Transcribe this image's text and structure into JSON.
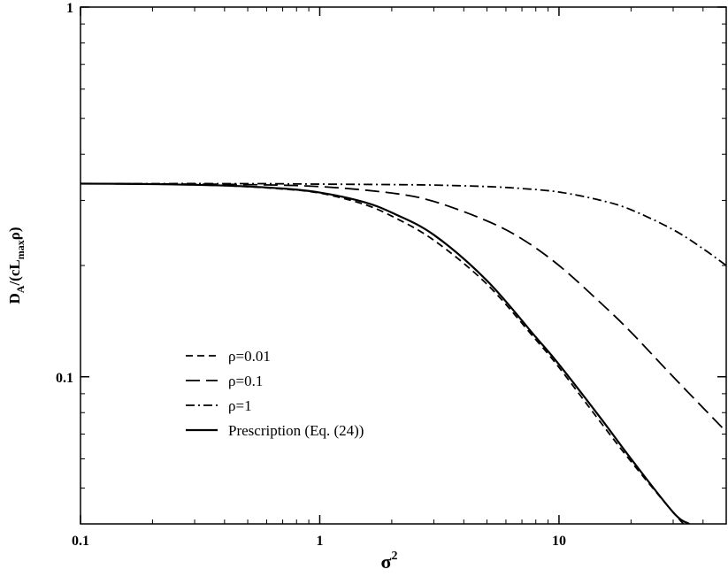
{
  "chart_data": {
    "type": "line",
    "x_scale": "log",
    "y_scale": "log",
    "xlim": [
      0.1,
      50
    ],
    "ylim": [
      0.04,
      1
    ],
    "x_ticks": [
      0.1,
      1,
      10
    ],
    "x_tick_labels": [
      "0.1",
      "1",
      "10"
    ],
    "y_ticks": [
      0.1,
      1
    ],
    "y_tick_labels": [
      "0.1",
      "1"
    ],
    "xlabel": {
      "base": "σ",
      "sup": "2"
    },
    "ylabel": {
      "p1": "D",
      "sub1": "A",
      "p2": "/(cL",
      "sub2": "max",
      "p3": "ρ)"
    },
    "grid": false,
    "legend_position": "lower-left",
    "series": [
      {
        "name": "ρ=0.01",
        "style": "dashed",
        "x": [
          0.1,
          0.2,
          0.4,
          0.7,
          1,
          1.5,
          2,
          3,
          5,
          8,
          10,
          15,
          20,
          30,
          40
        ],
        "y": [
          0.333,
          0.332,
          0.329,
          0.322,
          0.314,
          0.294,
          0.272,
          0.234,
          0.178,
          0.126,
          0.106,
          0.075,
          0.059,
          0.043,
          0.035
        ]
      },
      {
        "name": "ρ=0.1",
        "style": "long-dashed",
        "x": [
          0.1,
          0.3,
          0.5,
          1,
          2,
          3,
          5,
          7,
          10,
          15,
          20,
          30,
          50
        ],
        "y": [
          0.333,
          0.332,
          0.331,
          0.327,
          0.314,
          0.298,
          0.264,
          0.236,
          0.2,
          0.158,
          0.132,
          0.1,
          0.071
        ]
      },
      {
        "name": "ρ=1",
        "style": "dash-dot",
        "x": [
          0.1,
          0.5,
          1,
          2,
          3,
          5,
          7,
          10,
          15,
          20,
          30,
          40,
          50
        ],
        "y": [
          0.333,
          0.333,
          0.332,
          0.331,
          0.33,
          0.327,
          0.323,
          0.316,
          0.3,
          0.283,
          0.25,
          0.222,
          0.2
        ]
      },
      {
        "name": "Prescription (Eq. (24))",
        "style": "solid",
        "x": [
          0.1,
          0.2,
          0.4,
          0.7,
          1,
          1.5,
          2,
          3,
          5,
          8,
          10,
          15,
          20,
          30,
          35
        ],
        "y": [
          0.333,
          0.332,
          0.329,
          0.323,
          0.315,
          0.298,
          0.278,
          0.242,
          0.182,
          0.128,
          0.108,
          0.077,
          0.06,
          0.043,
          0.04
        ]
      }
    ]
  }
}
